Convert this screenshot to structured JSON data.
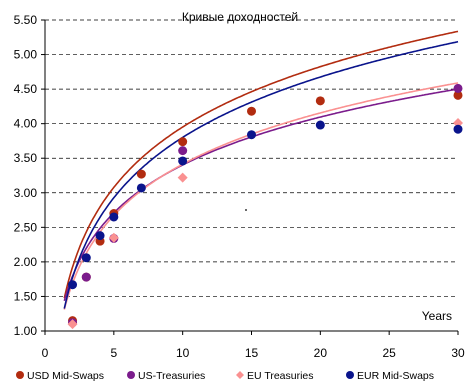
{
  "chart_data": {
    "type": "scatter",
    "title": "Кривые доходностей",
    "xlabel": "Years",
    "ylabel": "",
    "xlim": [
      0,
      30
    ],
    "ylim": [
      1.0,
      5.5
    ],
    "x_ticks": [
      "0",
      "5",
      "10",
      "15",
      "20",
      "25",
      "30"
    ],
    "y_ticks": [
      "1.00",
      "1.50",
      "2.00",
      "2.50",
      "3.00",
      "3.50",
      "4.00",
      "4.50",
      "5.00",
      "5.50"
    ],
    "grid": "horizontal dashed",
    "legend_position": "bottom",
    "trendline": "logarithmic",
    "series": [
      {
        "name": "USD Mid-Swaps",
        "color": "#b22c10",
        "x": [
          2,
          3,
          4,
          5,
          7,
          10,
          15,
          20,
          30
        ],
        "y": [
          1.15,
          1.78,
          2.3,
          2.7,
          3.27,
          3.74,
          4.18,
          4.33,
          4.41
        ],
        "fit": [
          1.26,
          1.05
        ]
      },
      {
        "name": "US-Treasuries",
        "color": "#7b1c8c",
        "x": [
          2,
          3,
          5,
          10,
          30
        ],
        "y": [
          1.12,
          1.78,
          2.34,
          3.61,
          4.51
        ],
        "fit": [
          1.0,
          1.1
        ]
      },
      {
        "name": "EU Treasuries",
        "color": "#fa9191",
        "x": [
          2,
          5,
          10,
          30
        ],
        "y": [
          1.1,
          2.35,
          3.22,
          4.01
        ],
        "fit": [
          1.07,
          0.95
        ]
      },
      {
        "name": "EUR Mid-Swaps",
        "color": "#0a148c",
        "x": [
          2,
          3,
          4,
          5,
          7,
          10,
          15,
          20,
          30
        ],
        "y": [
          1.67,
          2.06,
          2.38,
          2.65,
          3.07,
          3.46,
          3.84,
          3.98,
          3.92
        ],
        "fit": [
          1.26,
          0.9
        ]
      }
    ]
  }
}
